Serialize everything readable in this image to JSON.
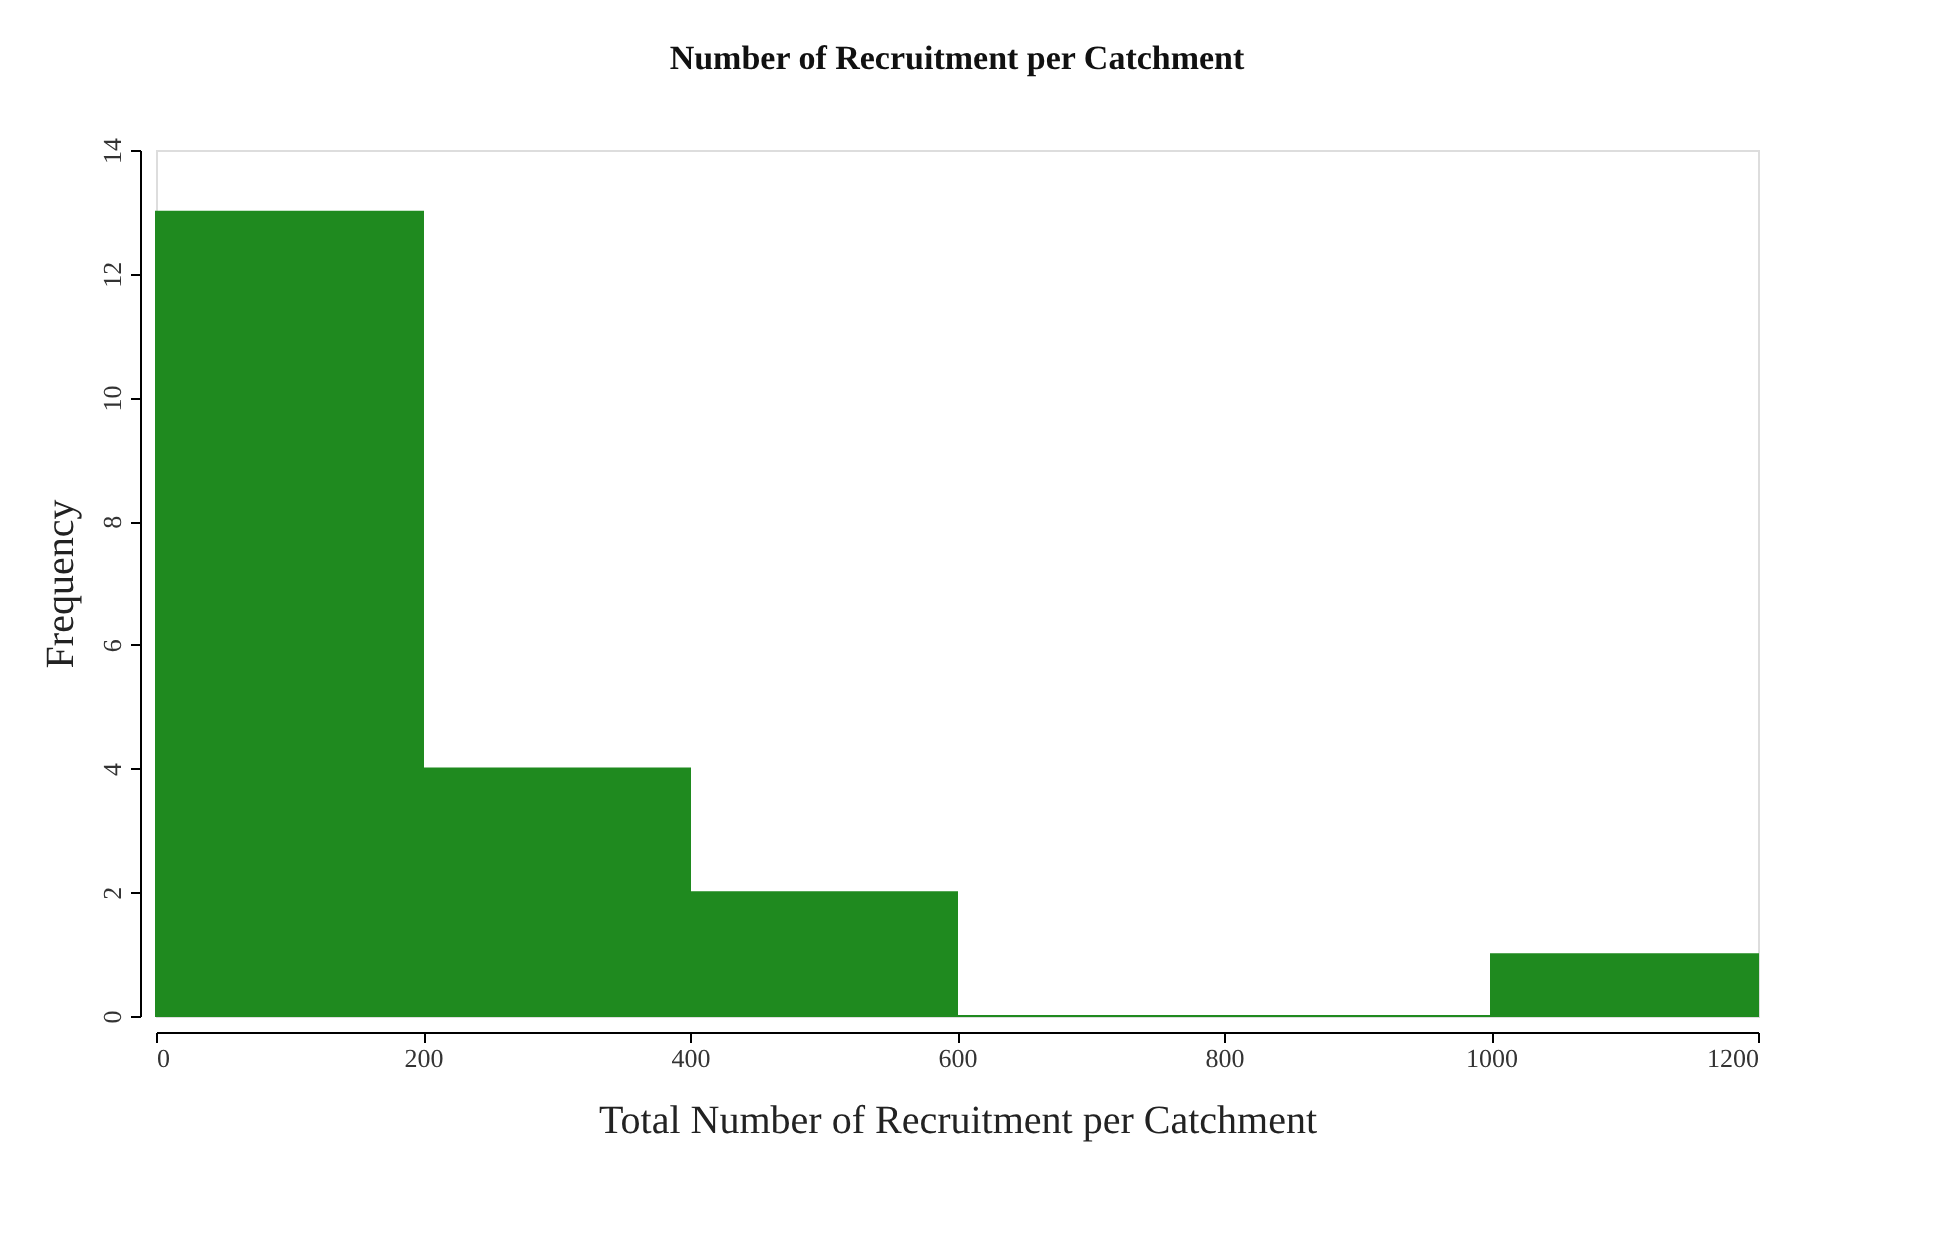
{
  "chart_data": {
    "type": "histogram",
    "title": "Number of Recruitment per Catchment",
    "xlabel": "Total Number of Recruitment per Catchment",
    "ylabel": "Frequency",
    "bins": [
      0,
      200,
      400,
      600,
      800,
      1000,
      1200
    ],
    "values": [
      13,
      4,
      2,
      0,
      0,
      1
    ],
    "color": "#1f8a1f",
    "xlim": [
      0,
      1200
    ],
    "xticks": [
      0,
      200,
      400,
      600,
      800,
      1000,
      1200
    ],
    "ylim": [
      0,
      14
    ],
    "yticks": [
      0,
      2,
      4,
      6,
      8,
      10,
      12,
      14
    ],
    "grid": false
  }
}
